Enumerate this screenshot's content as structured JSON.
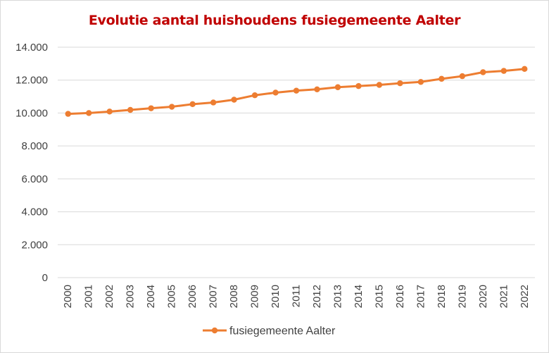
{
  "chart_data": {
    "type": "line",
    "title": "Evolutie aantal huishoudens fusiegemeente Aalter",
    "xlabel": "",
    "ylabel": "",
    "x": [
      "2000",
      "2001",
      "2002",
      "2003",
      "2004",
      "2005",
      "2006",
      "2007",
      "2008",
      "2009",
      "2010",
      "2011",
      "2012",
      "2013",
      "2014",
      "2015",
      "2016",
      "2017",
      "2018",
      "2019",
      "2020",
      "2021",
      "2022"
    ],
    "series": [
      {
        "name": "fusiegemeente Aalter",
        "values": [
          9950,
          10000,
          10090,
          10190,
          10290,
          10380,
          10540,
          10640,
          10810,
          11080,
          11240,
          11360,
          11440,
          11570,
          11640,
          11710,
          11810,
          11890,
          12080,
          12240,
          12480,
          12560,
          12680
        ]
      }
    ],
    "ylim": [
      0,
      14000
    ],
    "yticks": [
      "0",
      "2.000",
      "4.000",
      "6.000",
      "8.000",
      "10.000",
      "12.000",
      "14.000"
    ],
    "grid": true,
    "legend": "bottom",
    "colors": {
      "title": "#c00000",
      "series": "#ed7d31",
      "grid": "#d9d9d9"
    }
  }
}
